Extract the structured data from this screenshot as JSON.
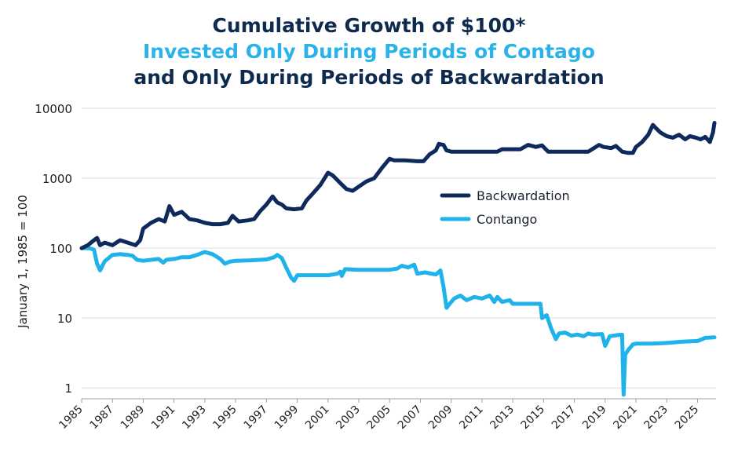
{
  "chart_data": {
    "type": "line",
    "title_lines": [
      "Cumulative Growth of $100*",
      "Invested Only During Periods of Contago",
      "and Only During Periods of Backwardation"
    ],
    "ylabel": "January 1, 1985 = 100",
    "xlabel": "",
    "yscale": "log",
    "ylim": [
      0.7,
      10000
    ],
    "xlim": [
      1985,
      2026.2
    ],
    "y_ticks": [
      1,
      10,
      100,
      1000,
      10000
    ],
    "y_tick_labels": [
      "1",
      "10",
      "100",
      "1000",
      "10000"
    ],
    "x_ticks": [
      1985,
      1987,
      1989,
      1991,
      1993,
      1995,
      1997,
      1999,
      2001,
      2003,
      2005,
      2007,
      2009,
      2011,
      2013,
      2015,
      2017,
      2019,
      2021,
      2023,
      2025
    ],
    "x_tick_labels": [
      "1985",
      "1987",
      "1989",
      "1991",
      "1993",
      "1995",
      "1997",
      "1999",
      "2001",
      "2003",
      "2005",
      "2007",
      "2009",
      "2011",
      "2013",
      "2015",
      "2017",
      "2019",
      "2021",
      "2023",
      "2025"
    ],
    "grid": true,
    "legend_position": "middle-right",
    "series": [
      {
        "name": "Backwardation",
        "color": "#0e2a5c",
        "points": [
          [
            1985.0,
            100
          ],
          [
            1985.4,
            110
          ],
          [
            1985.8,
            130
          ],
          [
            1986.0,
            140
          ],
          [
            1986.2,
            110
          ],
          [
            1986.5,
            120
          ],
          [
            1987.0,
            110
          ],
          [
            1987.5,
            130
          ],
          [
            1988.0,
            120
          ],
          [
            1988.5,
            110
          ],
          [
            1988.8,
            130
          ],
          [
            1989.0,
            190
          ],
          [
            1989.5,
            230
          ],
          [
            1990.0,
            260
          ],
          [
            1990.4,
            240
          ],
          [
            1990.7,
            400
          ],
          [
            1991.0,
            300
          ],
          [
            1991.5,
            330
          ],
          [
            1992.0,
            260
          ],
          [
            1992.5,
            250
          ],
          [
            1993.0,
            230
          ],
          [
            1993.5,
            220
          ],
          [
            1994.0,
            220
          ],
          [
            1994.5,
            230
          ],
          [
            1994.8,
            290
          ],
          [
            1995.2,
            240
          ],
          [
            1995.8,
            250
          ],
          [
            1996.2,
            260
          ],
          [
            1996.6,
            340
          ],
          [
            1997.0,
            420
          ],
          [
            1997.4,
            550
          ],
          [
            1997.7,
            450
          ],
          [
            1998.0,
            420
          ],
          [
            1998.3,
            370
          ],
          [
            1998.8,
            360
          ],
          [
            1999.3,
            370
          ],
          [
            1999.6,
            480
          ],
          [
            2000.0,
            600
          ],
          [
            2000.5,
            800
          ],
          [
            2001.0,
            1200
          ],
          [
            2001.3,
            1100
          ],
          [
            2001.8,
            850
          ],
          [
            2002.2,
            700
          ],
          [
            2002.6,
            660
          ],
          [
            2003.0,
            760
          ],
          [
            2003.5,
            900
          ],
          [
            2004.0,
            1000
          ],
          [
            2004.5,
            1400
          ],
          [
            2005.0,
            1900
          ],
          [
            2005.3,
            1800
          ],
          [
            2006.0,
            1800
          ],
          [
            2006.8,
            1750
          ],
          [
            2007.2,
            1750
          ],
          [
            2007.6,
            2200
          ],
          [
            2008.0,
            2500
          ],
          [
            2008.2,
            3100
          ],
          [
            2008.5,
            3000
          ],
          [
            2008.7,
            2500
          ],
          [
            2009.0,
            2400
          ],
          [
            2011.0,
            2400
          ],
          [
            2012.0,
            2400
          ],
          [
            2012.3,
            2600
          ],
          [
            2013.5,
            2600
          ],
          [
            2014.0,
            3000
          ],
          [
            2014.5,
            2800
          ],
          [
            2014.9,
            2950
          ],
          [
            2015.3,
            2400
          ],
          [
            2016.0,
            2400
          ],
          [
            2017.0,
            2400
          ],
          [
            2017.9,
            2400
          ],
          [
            2018.6,
            3000
          ],
          [
            2018.9,
            2800
          ],
          [
            2019.4,
            2700
          ],
          [
            2019.7,
            2900
          ],
          [
            2020.1,
            2400
          ],
          [
            2020.5,
            2300
          ],
          [
            2020.8,
            2300
          ],
          [
            2021.0,
            2800
          ],
          [
            2021.4,
            3300
          ],
          [
            2021.8,
            4200
          ],
          [
            2022.1,
            5800
          ],
          [
            2022.3,
            5200
          ],
          [
            2022.6,
            4500
          ],
          [
            2023.0,
            4000
          ],
          [
            2023.4,
            3800
          ],
          [
            2023.8,
            4200
          ],
          [
            2024.2,
            3600
          ],
          [
            2024.5,
            4000
          ],
          [
            2024.9,
            3800
          ],
          [
            2025.2,
            3600
          ],
          [
            2025.5,
            3900
          ],
          [
            2025.8,
            3300
          ],
          [
            2026.0,
            4500
          ],
          [
            2026.1,
            6200
          ]
        ]
      },
      {
        "name": "Contango",
        "color": "#20b2ea",
        "points": [
          [
            1985.0,
            100
          ],
          [
            1985.5,
            100
          ],
          [
            1985.8,
            95
          ],
          [
            1986.0,
            60
          ],
          [
            1986.2,
            48
          ],
          [
            1986.5,
            65
          ],
          [
            1987.0,
            80
          ],
          [
            1987.5,
            82
          ],
          [
            1988.0,
            80
          ],
          [
            1988.3,
            78
          ],
          [
            1988.6,
            68
          ],
          [
            1989.0,
            66
          ],
          [
            1989.5,
            68
          ],
          [
            1990.0,
            70
          ],
          [
            1990.3,
            62
          ],
          [
            1990.5,
            68
          ],
          [
            1991.0,
            70
          ],
          [
            1991.5,
            74
          ],
          [
            1992.0,
            74
          ],
          [
            1992.5,
            80
          ],
          [
            1993.0,
            88
          ],
          [
            1993.5,
            82
          ],
          [
            1994.0,
            70
          ],
          [
            1994.3,
            60
          ],
          [
            1994.6,
            64
          ],
          [
            1995.0,
            66
          ],
          [
            1996.0,
            67
          ],
          [
            1997.0,
            69
          ],
          [
            1997.5,
            74
          ],
          [
            1997.7,
            80
          ],
          [
            1998.0,
            72
          ],
          [
            1998.3,
            52
          ],
          [
            1998.6,
            38
          ],
          [
            1998.8,
            34
          ],
          [
            1999.0,
            41
          ],
          [
            2000.0,
            41
          ],
          [
            2001.0,
            41
          ],
          [
            2001.6,
            43
          ],
          [
            2001.8,
            46
          ],
          [
            2001.9,
            40
          ],
          [
            2002.1,
            50
          ],
          [
            2003.0,
            49
          ],
          [
            2004.0,
            49
          ],
          [
            2005.0,
            49
          ],
          [
            2005.5,
            51
          ],
          [
            2005.8,
            56
          ],
          [
            2006.2,
            53
          ],
          [
            2006.6,
            58
          ],
          [
            2006.8,
            43
          ],
          [
            2007.3,
            45
          ],
          [
            2008.0,
            42
          ],
          [
            2008.3,
            48
          ],
          [
            2008.5,
            28
          ],
          [
            2008.7,
            14
          ],
          [
            2008.9,
            16
          ],
          [
            2009.2,
            19
          ],
          [
            2009.6,
            21
          ],
          [
            2010.0,
            18
          ],
          [
            2010.5,
            20
          ],
          [
            2011.0,
            19
          ],
          [
            2011.5,
            21
          ],
          [
            2011.8,
            17
          ],
          [
            2012.0,
            20
          ],
          [
            2012.3,
            17
          ],
          [
            2012.8,
            18
          ],
          [
            2013.0,
            16
          ],
          [
            2013.5,
            16
          ],
          [
            2014.0,
            16
          ],
          [
            2014.5,
            16
          ],
          [
            2014.8,
            16
          ],
          [
            2014.9,
            10
          ],
          [
            2015.2,
            11
          ],
          [
            2015.5,
            7
          ],
          [
            2015.8,
            5
          ],
          [
            2016.0,
            6
          ],
          [
            2016.4,
            6.2
          ],
          [
            2016.8,
            5.6
          ],
          [
            2017.2,
            5.8
          ],
          [
            2017.6,
            5.5
          ],
          [
            2017.9,
            6
          ],
          [
            2018.2,
            5.8
          ],
          [
            2018.8,
            5.9
          ],
          [
            2019.0,
            4
          ],
          [
            2019.3,
            5.5
          ],
          [
            2019.8,
            5.7
          ],
          [
            2020.1,
            5.8
          ],
          [
            2020.2,
            0.8
          ],
          [
            2020.3,
            3
          ],
          [
            2020.5,
            3.5
          ],
          [
            2020.8,
            4.2
          ],
          [
            2021.0,
            4.3
          ],
          [
            2022.0,
            4.3
          ],
          [
            2023.0,
            4.4
          ],
          [
            2024.0,
            4.6
          ],
          [
            2025.0,
            4.7
          ],
          [
            2025.5,
            5.2
          ],
          [
            2026.1,
            5.3
          ]
        ]
      }
    ]
  }
}
